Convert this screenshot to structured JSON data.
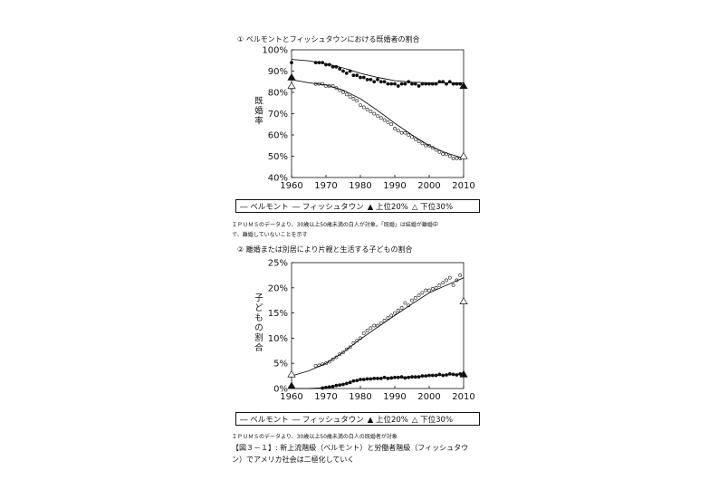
{
  "charts": [
    {
      "title": "① ベルモントとフィッシュタウンにおける既婚者の割合",
      "ylabel": "既婚率",
      "note": "ＩＰＵＭＳのデータより、30歳以上50歳未満の白人が対象。「既婚」は結婚が離婚中で、離婚していないことを示す",
      "legend": {
        "belmont": "― ベルモント",
        "fishtown": "― フィッシュタウン",
        "top20": "▲ 上位20%",
        "bottom30": "△ 下位30%"
      }
    },
    {
      "title": "② 離婚または別居により片親と生活する子どもの割合",
      "ylabel": "子どもの割合",
      "note": "ＩＰＵＭＳのデータより、30歳以上50歳未満の白人の既婚者が対象",
      "legend": {
        "belmont": "― ベルモント",
        "fishtown": "― フィッシュタウン",
        "top20": "▲ 上位20%",
        "bottom30": "△ 下位30%"
      }
    }
  ],
  "figure_caption": {
    "line1": "【図３－１】: 新上流階級（ベルモント）と労働者階級（フィッシュタウ",
    "line2": "ン）でアメリカ社会は二極化していく"
  },
  "chart_data": [
    {
      "type": "scatter",
      "xlim": [
        1960,
        2010
      ],
      "ylim": [
        40,
        100
      ],
      "y_unit": "%",
      "x_ticks": [
        1960,
        1970,
        1980,
        1990,
        2000,
        2010
      ],
      "y_ticks": [
        40,
        50,
        60,
        70,
        80,
        90,
        100
      ],
      "series": [
        {
          "name": "ベルモント",
          "style": "filled-dots",
          "x": [
            1960,
            1967,
            1968,
            1969,
            1970,
            1971,
            1972,
            1973,
            1974,
            1975,
            1976,
            1977,
            1978,
            1979,
            1980,
            1981,
            1982,
            1983,
            1984,
            1985,
            1986,
            1987,
            1988,
            1989,
            1990,
            1991,
            1992,
            1993,
            1994,
            1995,
            1996,
            1997,
            1998,
            1999,
            2000,
            2001,
            2002,
            2003,
            2004,
            2005,
            2006,
            2007,
            2008,
            2009
          ],
          "y": [
            94,
            94,
            94,
            94,
            93,
            93,
            92,
            92,
            91,
            90,
            89,
            90,
            88,
            88,
            87,
            87,
            86,
            86,
            85,
            86,
            85,
            85,
            84,
            84,
            84,
            83,
            84,
            84,
            85,
            84,
            84,
            83,
            84,
            84,
            84,
            84,
            84,
            85,
            85,
            84,
            85,
            84,
            84,
            84
          ]
        },
        {
          "name": "ベルモント trend",
          "style": "line",
          "x": [
            1960,
            1965,
            1970,
            1975,
            1980,
            1985,
            1990,
            1995,
            2000,
            2005,
            2010
          ],
          "y": [
            95.5,
            94.8,
            93.5,
            91.5,
            89,
            87,
            85.5,
            84.8,
            84.5,
            84.5,
            84.5
          ]
        },
        {
          "name": "フィッシュタウン",
          "style": "open-dots",
          "x": [
            1960,
            1967,
            1968,
            1969,
            1970,
            1971,
            1972,
            1973,
            1974,
            1975,
            1976,
            1977,
            1978,
            1979,
            1980,
            1981,
            1982,
            1983,
            1984,
            1985,
            1986,
            1987,
            1988,
            1989,
            1990,
            1991,
            1992,
            1993,
            1994,
            1995,
            1996,
            1997,
            1998,
            1999,
            2000,
            2001,
            2002,
            2003,
            2004,
            2005,
            2006,
            2007,
            2008,
            2009
          ],
          "y": [
            82,
            84,
            84,
            84,
            83,
            83,
            83,
            82,
            81,
            80,
            79,
            78,
            77,
            76,
            74,
            73,
            72,
            71,
            70,
            69,
            68,
            67,
            66,
            65,
            63,
            62,
            61,
            61,
            60,
            59,
            58,
            57,
            56,
            55,
            55,
            54,
            53,
            52,
            51,
            51,
            50,
            49,
            49,
            49
          ]
        },
        {
          "name": "フィッシュタウン trend",
          "style": "line",
          "x": [
            1960,
            1965,
            1970,
            1975,
            1980,
            1985,
            1990,
            1995,
            2000,
            2005,
            2010
          ],
          "y": [
            86,
            84.5,
            83.5,
            81,
            77,
            71.5,
            65.5,
            60,
            55,
            51.5,
            49
          ]
        },
        {
          "name": "上位20%",
          "style": "filled-triangle",
          "x": [
            1960,
            2010
          ],
          "y": [
            87,
            83
          ]
        },
        {
          "name": "下位30%",
          "style": "open-triangle",
          "x": [
            1960,
            2010
          ],
          "y": [
            83,
            50
          ]
        }
      ]
    },
    {
      "type": "scatter",
      "xlim": [
        1960,
        2010
      ],
      "ylim": [
        0,
        25
      ],
      "y_unit": "%",
      "x_ticks": [
        1960,
        1970,
        1980,
        1990,
        2000,
        2010
      ],
      "y_ticks": [
        0,
        5,
        10,
        15,
        20,
        25
      ],
      "series": [
        {
          "name": "ベルモント",
          "style": "filled-dots",
          "x": [
            1969,
            1970,
            1971,
            1972,
            1973,
            1974,
            1975,
            1976,
            1977,
            1978,
            1979,
            1980,
            1981,
            1982,
            1983,
            1984,
            1985,
            1986,
            1987,
            1988,
            1989,
            1990,
            1991,
            1992,
            1993,
            1994,
            1995,
            1996,
            1997,
            1998,
            1999,
            2000,
            2001,
            2002,
            2003,
            2004,
            2005,
            2006,
            2007,
            2008,
            2009
          ],
          "y": [
            0.1,
            0.2,
            0.3,
            0.4,
            0.6,
            0.7,
            0.8,
            1.0,
            1.2,
            1.5,
            1.6,
            1.8,
            1.8,
            1.9,
            1.9,
            2.0,
            2.0,
            2.0,
            2.2,
            2.0,
            2.1,
            2.2,
            2.2,
            2.3,
            2.1,
            2.2,
            2.3,
            2.3,
            2.3,
            2.5,
            2.5,
            2.6,
            2.6,
            2.6,
            2.8,
            2.6,
            2.7,
            2.9,
            2.8,
            2.7,
            2.9
          ]
        },
        {
          "name": "ベルモント trend",
          "style": "line",
          "x": [
            1960,
            1965,
            1970,
            1975,
            1980,
            1985,
            1990,
            1995,
            2000,
            2005,
            2010
          ],
          "y": [
            0,
            0,
            0.2,
            0.9,
            1.7,
            2.0,
            2.2,
            2.3,
            2.5,
            2.7,
            2.9
          ]
        },
        {
          "name": "フィッシュタウン",
          "style": "open-dots",
          "x": [
            1967,
            1968,
            1969,
            1970,
            1971,
            1972,
            1973,
            1974,
            1975,
            1976,
            1977,
            1978,
            1979,
            1980,
            1981,
            1982,
            1983,
            1984,
            1985,
            1986,
            1987,
            1988,
            1989,
            1990,
            1991,
            1992,
            1993,
            1994,
            1995,
            1996,
            1997,
            1998,
            1999,
            2000,
            2001,
            2002,
            2003,
            2004,
            2005,
            2006,
            2007,
            2008,
            2009
          ],
          "y": [
            4.5,
            4.6,
            4.8,
            5.0,
            5.3,
            5.8,
            6.2,
            6.8,
            7.2,
            7.8,
            8.2,
            9.0,
            9.5,
            10.0,
            11.0,
            11.5,
            12.0,
            12.5,
            12.5,
            13.0,
            13.5,
            14.0,
            14.5,
            15.0,
            15.5,
            16.0,
            17.0,
            16.5,
            17.5,
            18.0,
            18.5,
            19.0,
            19.5,
            19.5,
            19.8,
            20.0,
            20.5,
            21.0,
            21.5,
            22.0,
            20.5,
            21.5,
            22.5
          ]
        },
        {
          "name": "フィッシュタウン trend",
          "style": "line",
          "x": [
            1960,
            1965,
            1970,
            1975,
            1980,
            1985,
            1990,
            1995,
            2000,
            2005,
            2010
          ],
          "y": [
            2.5,
            3.5,
            5.0,
            7.2,
            9.8,
            12.2,
            14.5,
            16.8,
            19.0,
            20.5,
            22
          ]
        },
        {
          "name": "上位20%",
          "style": "filled-triangle",
          "x": [
            1960,
            2010
          ],
          "y": [
            0.5,
            2.8
          ]
        },
        {
          "name": "下位30%",
          "style": "open-triangle",
          "x": [
            1960,
            2010
          ],
          "y": [
            2.8,
            17.3
          ]
        }
      ]
    }
  ]
}
